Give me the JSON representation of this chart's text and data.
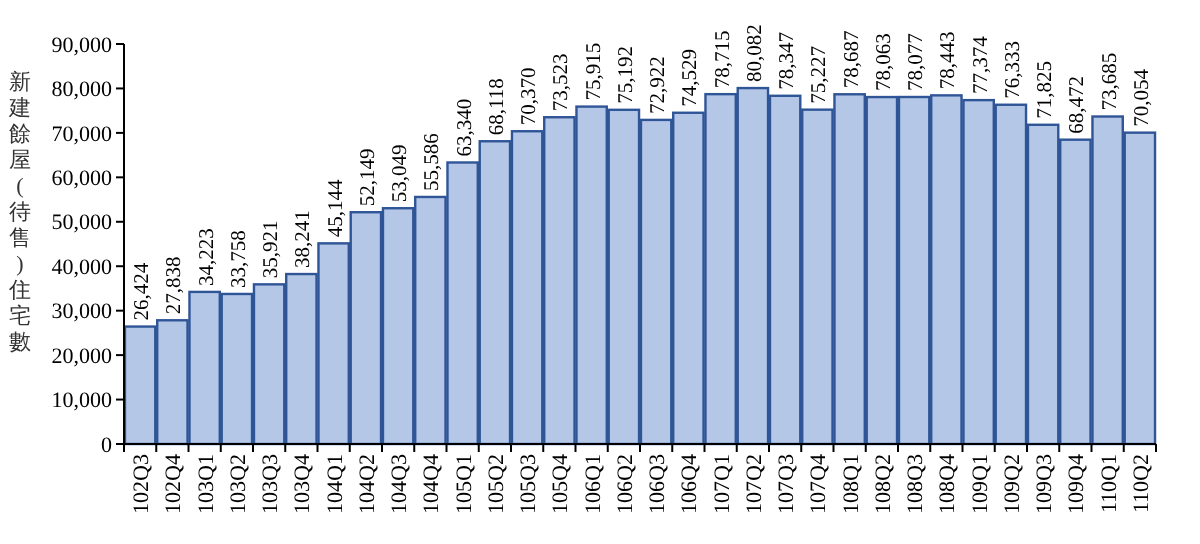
{
  "chart_data": {
    "type": "bar",
    "ylabel": "新建餘屋(待售)住宅數",
    "categories": [
      "102Q3",
      "102Q4",
      "103Q1",
      "103Q2",
      "103Q3",
      "103Q4",
      "104Q1",
      "104Q2",
      "104Q3",
      "104Q4",
      "105Q1",
      "105Q2",
      "105Q3",
      "105Q4",
      "106Q1",
      "106Q2",
      "106Q3",
      "106Q4",
      "107Q1",
      "107Q2",
      "107Q3",
      "107Q4",
      "108Q1",
      "108Q2",
      "108Q3",
      "108Q4",
      "109Q1",
      "109Q2",
      "109Q3",
      "109Q4",
      "110Q1",
      "110Q2"
    ],
    "values": [
      26424,
      27838,
      34223,
      33758,
      35921,
      38241,
      45144,
      52149,
      53049,
      55586,
      63340,
      68118,
      70370,
      73523,
      75915,
      75192,
      72922,
      74529,
      78715,
      80082,
      78347,
      75227,
      78687,
      78063,
      78077,
      78443,
      77374,
      76333,
      71825,
      68472,
      73685,
      70054
    ],
    "color": "#b4c7e7",
    "ylim": [
      0,
      90000
    ],
    "yticks": [
      {
        "value": 0,
        "label": "0"
      },
      {
        "value": 10000,
        "label": "10,000"
      },
      {
        "value": 20000,
        "label": "20,000"
      },
      {
        "value": 30000,
        "label": "30,000"
      },
      {
        "value": 40000,
        "label": "40,000"
      },
      {
        "value": 50000,
        "label": "50,000"
      },
      {
        "value": 60000,
        "label": "60,000"
      },
      {
        "value": 70000,
        "label": "70,000"
      },
      {
        "value": 80000,
        "label": "80,000"
      },
      {
        "value": 90000,
        "label": "90,000"
      }
    ],
    "value_labels": [
      "26,424",
      "27,838",
      "34,223",
      "33,758",
      "35,921",
      "38,241",
      "45,144",
      "52,149",
      "53,049",
      "55,586",
      "63,340",
      "68,118",
      "70,370",
      "73,523",
      "75,915",
      "75,192",
      "72,922",
      "74,529",
      "78,715",
      "80,082",
      "78,347",
      "75,227",
      "78,687",
      "78,063",
      "78,077",
      "78,443",
      "77,374",
      "76,333",
      "71,825",
      "68,472",
      "73,685",
      "70,054"
    ],
    "grid": false
  }
}
